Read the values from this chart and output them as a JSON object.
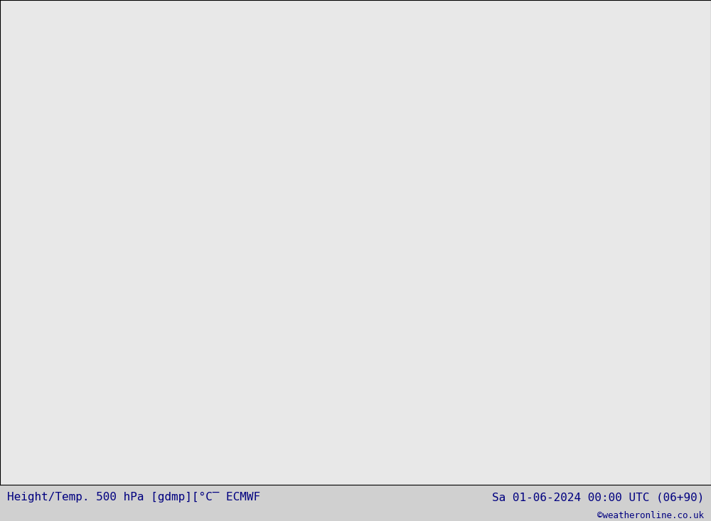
{
  "title_left": "Height/Temp. 500 hPa [gdmp][°C¯ ECMWF",
  "title_right": "Sa 01-06-2024 00:00 UTC (06+90)",
  "credit": "©weatheronline.co.uk",
  "background_color": "#e8e8e8",
  "map_background": "#f0f0f0",
  "land_color": "#cccccc",
  "green_fill": "#90ee90",
  "title_color": "#000080",
  "credit_color": "#000080",
  "fig_width": 10.0,
  "fig_height": 7.33
}
